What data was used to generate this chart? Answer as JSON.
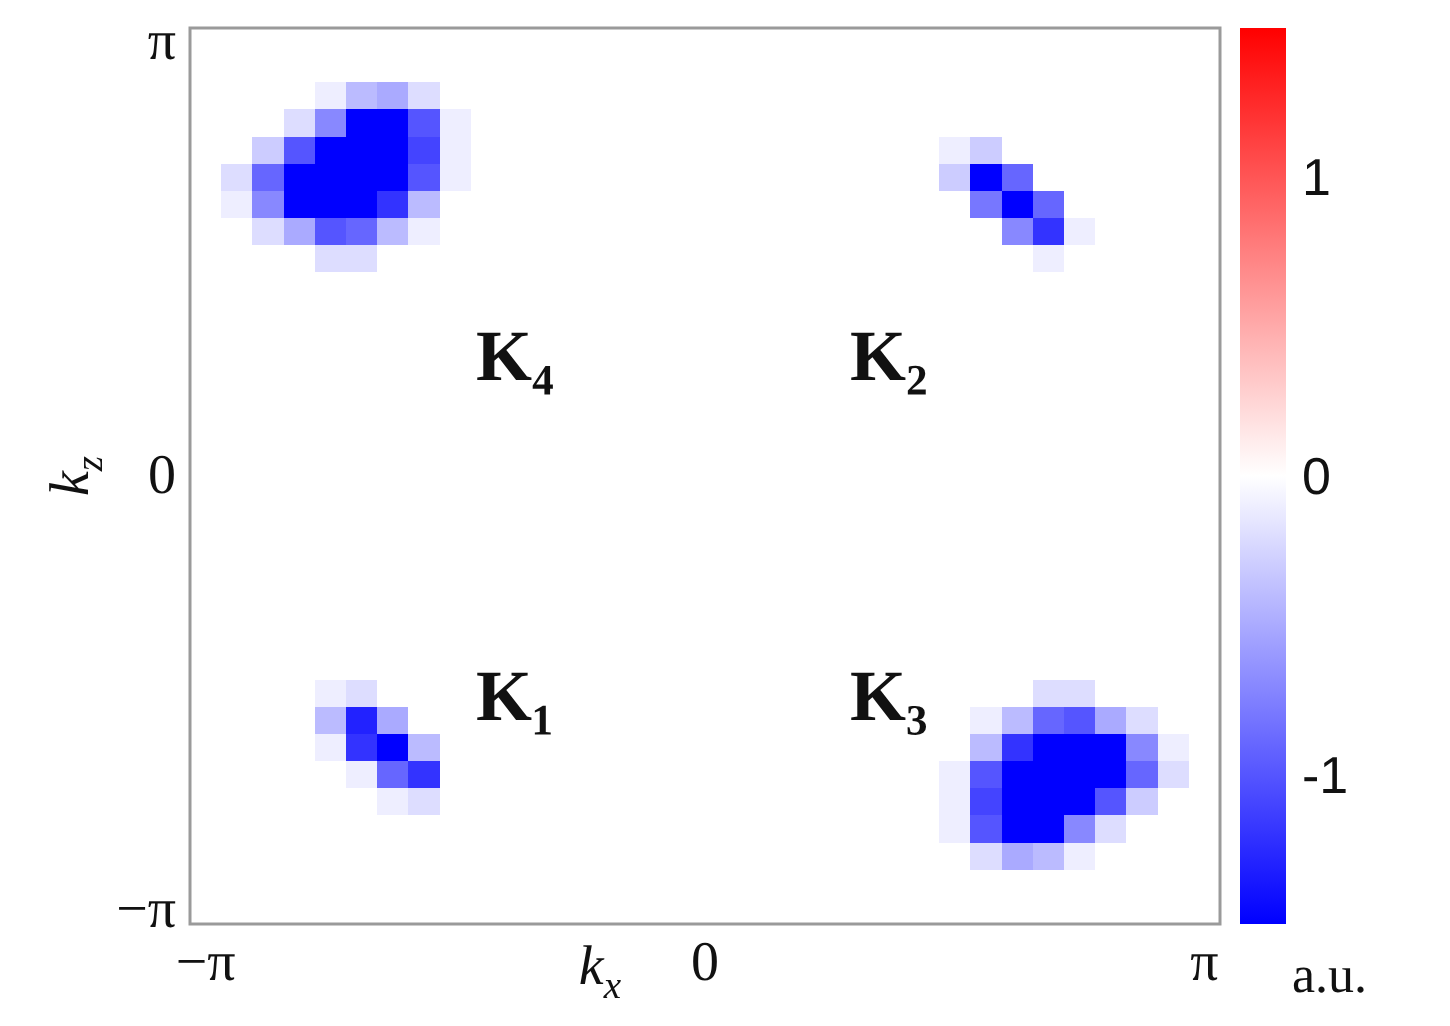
{
  "chart_data": {
    "type": "heatmap",
    "xlabel": "k$_{x}$",
    "ylabel": "k$_{z}$",
    "clabel": "a.u.",
    "categories": [
      "−π",
      null,
      null,
      null,
      null,
      null,
      null,
      null,
      null,
      null,
      null,
      null,
      null,
      null,
      null,
      null,
      "0",
      null,
      null,
      null,
      null,
      null,
      null,
      null,
      null,
      null,
      null,
      null,
      null,
      null,
      null,
      null,
      "π"
    ],
    "y_categories": [
      "π",
      null,
      null,
      null,
      null,
      null,
      null,
      null,
      null,
      null,
      null,
      null,
      null,
      null,
      null,
      null,
      "0",
      null,
      null,
      null,
      null,
      null,
      null,
      null,
      null,
      null,
      null,
      null,
      null,
      null,
      null,
      null,
      "−π"
    ],
    "clim": [
      -1.5,
      1.5
    ],
    "cticks": [
      -1,
      0,
      1
    ],
    "annotations": [
      "K₄",
      "K₂",
      "K₁",
      "K₃"
    ],
    "cells": [
      [
        0,
        0,
        0,
        0,
        0,
        0,
        0,
        0,
        0,
        0,
        0,
        0,
        0,
        0,
        0,
        0,
        0,
        0,
        0,
        0,
        0,
        0,
        0,
        0,
        0,
        0,
        0,
        0,
        0,
        0,
        0,
        0,
        0
      ],
      [
        0,
        0,
        0,
        0,
        0,
        0,
        0,
        0,
        0,
        0,
        0,
        0,
        0,
        0,
        0,
        0,
        0,
        0,
        0,
        0,
        0,
        0,
        0,
        0,
        0,
        0,
        0,
        0,
        0,
        0,
        0,
        0,
        0
      ],
      [
        0,
        0,
        0,
        0,
        -0.1,
        -0.4,
        -0.5,
        -0.2,
        0,
        0,
        0,
        0,
        0,
        0,
        0,
        0,
        0,
        0,
        0,
        0,
        0,
        0,
        0,
        0,
        0,
        0,
        0,
        0,
        0,
        0,
        0,
        0,
        0
      ],
      [
        0,
        0,
        0,
        -0.2,
        -0.7,
        -1.5,
        -1.5,
        -1,
        -0.1,
        0,
        0,
        0,
        0,
        0,
        0,
        0,
        0,
        0,
        0,
        0,
        0,
        0,
        0,
        0,
        0,
        0,
        0,
        0,
        0,
        0,
        0,
        0,
        0
      ],
      [
        0,
        0,
        -0.3,
        -1,
        -1.5,
        -1.5,
        -1.5,
        -1.1,
        -0.1,
        0,
        0,
        0,
        0,
        0,
        0,
        0,
        0,
        0,
        0,
        0,
        0,
        0,
        0,
        0,
        -0.1,
        -0.3,
        0,
        0,
        0,
        0,
        0,
        0,
        0
      ],
      [
        0,
        -0.2,
        -0.9,
        -1.5,
        -1.5,
        -1.5,
        -1.5,
        -1,
        -0.1,
        0,
        0,
        0,
        0,
        0,
        0,
        0,
        0,
        0,
        0,
        0,
        0,
        0,
        0,
        0,
        -0.3,
        -1.5,
        -0.9,
        0,
        0,
        0,
        0,
        0,
        0
      ],
      [
        0,
        -0.1,
        -0.7,
        -1.5,
        -1.5,
        -1.5,
        -1.2,
        -0.4,
        0,
        0,
        0,
        0,
        0,
        0,
        0,
        0,
        0,
        0,
        0,
        0,
        0,
        0,
        0,
        0,
        0,
        -0.8,
        -1.5,
        -0.9,
        0,
        0,
        0,
        0,
        0
      ],
      [
        0,
        0,
        -0.2,
        -0.5,
        -1,
        -0.9,
        -0.4,
        -0.1,
        0,
        0,
        0,
        0,
        0,
        0,
        0,
        0,
        0,
        0,
        0,
        0,
        0,
        0,
        0,
        0,
        0,
        0,
        -0.7,
        -1.2,
        -0.1,
        0,
        0,
        0,
        0
      ],
      [
        0,
        0,
        0,
        0,
        -0.2,
        -0.2,
        0,
        0,
        0,
        0,
        0,
        0,
        0,
        0,
        0,
        0,
        0,
        0,
        0,
        0,
        0,
        0,
        0,
        0,
        0,
        0,
        0,
        -0.1,
        0,
        0,
        0,
        0,
        0
      ],
      [
        0,
        0,
        0,
        0,
        0,
        0,
        0,
        0,
        0,
        0,
        0,
        0,
        0,
        0,
        0,
        0,
        0,
        0,
        0,
        0,
        0,
        0,
        0,
        0,
        0,
        0,
        0,
        0,
        0,
        0,
        0,
        0,
        0
      ],
      [
        0,
        0,
        0,
        0,
        0,
        0,
        0,
        0,
        0,
        0,
        0,
        0,
        0,
        0,
        0,
        0,
        0,
        0,
        0,
        0,
        0,
        0,
        0,
        0,
        0,
        0,
        0,
        0,
        0,
        0,
        0,
        0,
        0
      ],
      [
        0,
        0,
        0,
        0,
        0,
        0,
        0,
        0,
        0,
        0,
        0,
        0,
        0,
        0,
        0,
        0,
        0,
        0,
        0,
        0,
        0,
        0,
        0,
        0,
        0,
        0,
        0,
        0,
        0,
        0,
        0,
        0,
        0
      ],
      [
        0,
        0,
        0,
        0,
        0,
        0,
        0,
        0,
        0,
        0,
        0,
        0,
        0,
        0,
        0,
        0,
        0,
        0,
        0,
        0,
        0,
        0,
        0,
        0,
        0,
        0,
        0,
        0,
        0,
        0,
        0,
        0,
        0
      ],
      [
        0,
        0,
        0,
        0,
        0,
        0,
        0,
        0,
        0,
        0,
        0,
        0,
        0,
        0,
        0,
        0,
        0,
        0,
        0,
        0,
        0,
        0,
        0,
        0,
        0,
        0,
        0,
        0,
        0,
        0,
        0,
        0,
        0
      ],
      [
        0,
        0,
        0,
        0,
        0,
        0,
        0,
        0,
        0,
        0,
        0,
        0,
        0,
        0,
        0,
        0,
        0,
        0,
        0,
        0,
        0,
        0,
        0,
        0,
        0,
        0,
        0,
        0,
        0,
        0,
        0,
        0,
        0
      ],
      [
        0,
        0,
        0,
        0,
        0,
        0,
        0,
        0,
        0,
        0,
        0,
        0,
        0,
        0,
        0,
        0,
        0,
        0,
        0,
        0,
        0,
        0,
        0,
        0,
        0,
        0,
        0,
        0,
        0,
        0,
        0,
        0,
        0
      ],
      [
        0,
        0,
        0,
        0,
        0,
        0,
        0,
        0,
        0,
        0,
        0,
        0,
        0,
        0,
        0,
        0,
        0,
        0,
        0,
        0,
        0,
        0,
        0,
        0,
        0,
        0,
        0,
        0,
        0,
        0,
        0,
        0,
        0
      ],
      [
        0,
        0,
        0,
        0,
        0,
        0,
        0,
        0,
        0,
        0,
        0,
        0,
        0,
        0,
        0,
        0,
        0,
        0,
        0,
        0,
        0,
        0,
        0,
        0,
        0,
        0,
        0,
        0,
        0,
        0,
        0,
        0,
        0
      ],
      [
        0,
        0,
        0,
        0,
        0,
        0,
        0,
        0,
        0,
        0,
        0,
        0,
        0,
        0,
        0,
        0,
        0,
        0,
        0,
        0,
        0,
        0,
        0,
        0,
        0,
        0,
        0,
        0,
        0,
        0,
        0,
        0,
        0
      ],
      [
        0,
        0,
        0,
        0,
        0,
        0,
        0,
        0,
        0,
        0,
        0,
        0,
        0,
        0,
        0,
        0,
        0,
        0,
        0,
        0,
        0,
        0,
        0,
        0,
        0,
        0,
        0,
        0,
        0,
        0,
        0,
        0,
        0
      ],
      [
        0,
        0,
        0,
        0,
        0,
        0,
        0,
        0,
        0,
        0,
        0,
        0,
        0,
        0,
        0,
        0,
        0,
        0,
        0,
        0,
        0,
        0,
        0,
        0,
        0,
        0,
        0,
        0,
        0,
        0,
        0,
        0,
        0
      ],
      [
        0,
        0,
        0,
        0,
        0,
        0,
        0,
        0,
        0,
        0,
        0,
        0,
        0,
        0,
        0,
        0,
        0,
        0,
        0,
        0,
        0,
        0,
        0,
        0,
        0,
        0,
        0,
        0,
        0,
        0,
        0,
        0,
        0
      ],
      [
        0,
        0,
        0,
        0,
        0,
        0,
        0,
        0,
        0,
        0,
        0,
        0,
        0,
        0,
        0,
        0,
        0,
        0,
        0,
        0,
        0,
        0,
        0,
        0,
        0,
        0,
        0,
        0,
        0,
        0,
        0,
        0,
        0
      ],
      [
        0,
        0,
        0,
        0,
        0,
        0,
        0,
        0,
        0,
        0,
        0,
        0,
        0,
        0,
        0,
        0,
        0,
        0,
        0,
        0,
        0,
        0,
        0,
        0,
        0,
        0,
        0,
        0,
        0,
        0,
        0,
        0,
        0
      ],
      [
        0,
        0,
        0,
        0,
        -0.1,
        -0.2,
        0,
        0,
        0,
        0,
        0,
        0,
        0,
        0,
        0,
        0,
        0,
        0,
        0,
        0,
        0,
        null,
        0,
        0,
        0,
        0,
        0,
        -0.2,
        -0.2,
        0,
        0,
        0,
        0
      ],
      [
        0,
        0,
        0,
        0,
        -0.4,
        -1.3,
        -0.5,
        0,
        0,
        0,
        0,
        0,
        0,
        0,
        0,
        0,
        0,
        0,
        0,
        0,
        0,
        0,
        0,
        0,
        0,
        -0.1,
        -0.4,
        -0.9,
        -1,
        -0.5,
        -0.2,
        0,
        0
      ],
      [
        0,
        0,
        0,
        0,
        -0.1,
        -1.2,
        -1.5,
        -0.4,
        0,
        0,
        0,
        0,
        0,
        0,
        0,
        0,
        0,
        0,
        0,
        0,
        0,
        0,
        0,
        0,
        0,
        -0.4,
        -1.2,
        -1.5,
        -1.5,
        -1.5,
        -0.7,
        -0.1,
        0
      ],
      [
        0,
        0,
        0,
        0,
        0,
        -0.1,
        -0.9,
        -1.2,
        0,
        0,
        0,
        0,
        0,
        0,
        0,
        0,
        0,
        0,
        0,
        0,
        0,
        0,
        0,
        0,
        -0.1,
        -1,
        -1.5,
        -1.5,
        -1.5,
        -1.5,
        -0.9,
        -0.2,
        0
      ],
      [
        0,
        0,
        0,
        0,
        0,
        0,
        -0.1,
        -0.2,
        0,
        0,
        0,
        0,
        0,
        0,
        0,
        0,
        0,
        0,
        0,
        0,
        0,
        0,
        0,
        0,
        -0.1,
        -1.1,
        -1.5,
        -1.5,
        -1.5,
        -1,
        -0.3,
        0,
        0
      ],
      [
        0,
        0,
        0,
        0,
        0,
        0,
        0,
        0,
        0,
        0,
        0,
        0,
        0,
        0,
        0,
        0,
        0,
        0,
        0,
        0,
        0,
        0,
        0,
        0,
        -0.1,
        -1,
        -1.5,
        -1.5,
        -0.7,
        -0.2,
        0,
        0,
        0
      ],
      [
        0,
        0,
        0,
        0,
        0,
        0,
        0,
        0,
        0,
        0,
        0,
        0,
        0,
        0,
        0,
        0,
        0,
        0,
        0,
        0,
        0,
        0,
        0,
        0,
        0,
        -0.2,
        -0.5,
        -0.4,
        -0.1,
        0,
        0,
        0,
        0
      ],
      [
        0,
        0,
        0,
        0,
        0,
        0,
        0,
        0,
        0,
        0,
        0,
        0,
        0,
        0,
        0,
        0,
        0,
        0,
        0,
        0,
        0,
        0,
        0,
        0,
        0,
        0,
        0,
        0,
        0,
        0,
        0,
        0,
        0
      ],
      [
        0,
        0,
        0,
        0,
        0,
        0,
        0,
        0,
        0,
        0,
        0,
        0,
        0,
        0,
        0,
        0,
        0,
        0,
        0,
        0,
        0,
        0,
        0,
        0,
        0,
        0,
        0,
        0,
        0,
        0,
        0,
        0,
        0
      ]
    ]
  }
}
